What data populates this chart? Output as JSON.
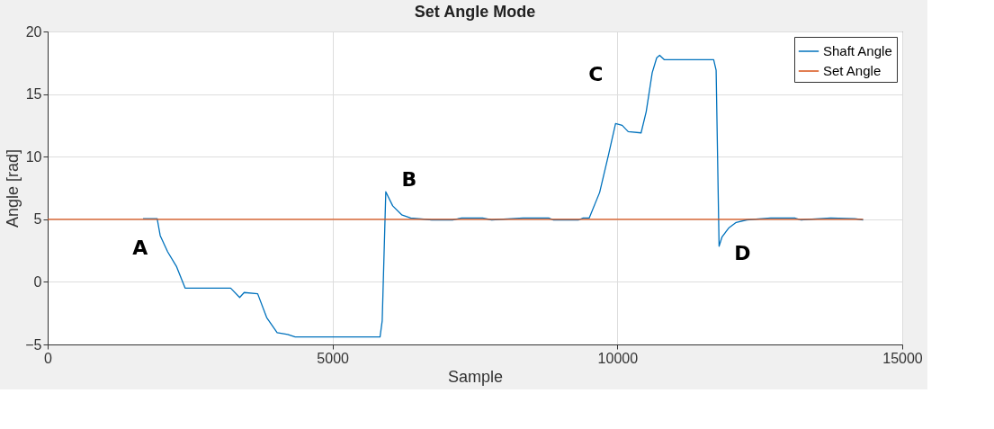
{
  "chart_data": {
    "type": "line",
    "title": "Set Angle Mode",
    "xlabel": "Sample",
    "ylabel": "Angle [rad]",
    "xlim": [
      0,
      15000
    ],
    "xticks": [
      0,
      5000,
      10000,
      15000
    ],
    "ylim": [
      -5,
      20
    ],
    "yticks": [
      -5,
      0,
      5,
      10,
      15,
      20
    ],
    "grid": true,
    "legend": "top right",
    "line_style": "solid",
    "marker": "none",
    "series": [
      {
        "name": "Shaft Angle",
        "color": "#0072bd",
        "x": [
          1674,
          1922,
          1975,
          2106,
          2264,
          2412,
          3212,
          3370,
          3449,
          3686,
          3844,
          4028,
          4213,
          4344,
          5834,
          5872,
          5935,
          6056,
          6213,
          6371,
          6740,
          7109,
          7267,
          7635,
          7793,
          8346,
          8794,
          8873,
          9321,
          9400,
          9505,
          9689,
          9847,
          9968,
          10084,
          10190,
          10416,
          10506,
          10611,
          10690,
          10742,
          10821,
          11690,
          11733,
          11785,
          11838,
          11954,
          12085,
          12270,
          12690,
          13112,
          13218,
          13744,
          14166,
          14313
        ],
        "values": [
          5.05,
          5.05,
          3.7,
          2.4,
          1.2,
          -0.5,
          -0.5,
          -1.25,
          -0.85,
          -0.95,
          -2.85,
          -4.05,
          -4.2,
          -4.4,
          -4.4,
          -3.1,
          7.2,
          6.07,
          5.36,
          5.1,
          4.95,
          4.95,
          5.1,
          5.1,
          4.95,
          5.1,
          5.1,
          4.95,
          4.95,
          5.1,
          5.1,
          7.15,
          10.2,
          12.65,
          12.5,
          12.0,
          11.9,
          13.6,
          16.7,
          17.9,
          18.1,
          17.75,
          17.75,
          16.9,
          2.85,
          3.6,
          4.3,
          4.75,
          4.95,
          5.1,
          5.1,
          4.95,
          5.1,
          5.05,
          4.95
        ]
      },
      {
        "name": "Set Angle",
        "color": "#d95319",
        "x": [
          0,
          14313
        ],
        "values": [
          5,
          5
        ]
      }
    ],
    "annotations": [
      {
        "text": "A",
        "x": 1922,
        "y": 5.05
      },
      {
        "text": "B",
        "x": 5935,
        "y": 7.2
      },
      {
        "text": "C",
        "x": 9968,
        "y": 12.65
      },
      {
        "text": "D",
        "x": 11785,
        "y": 2.85
      }
    ]
  }
}
